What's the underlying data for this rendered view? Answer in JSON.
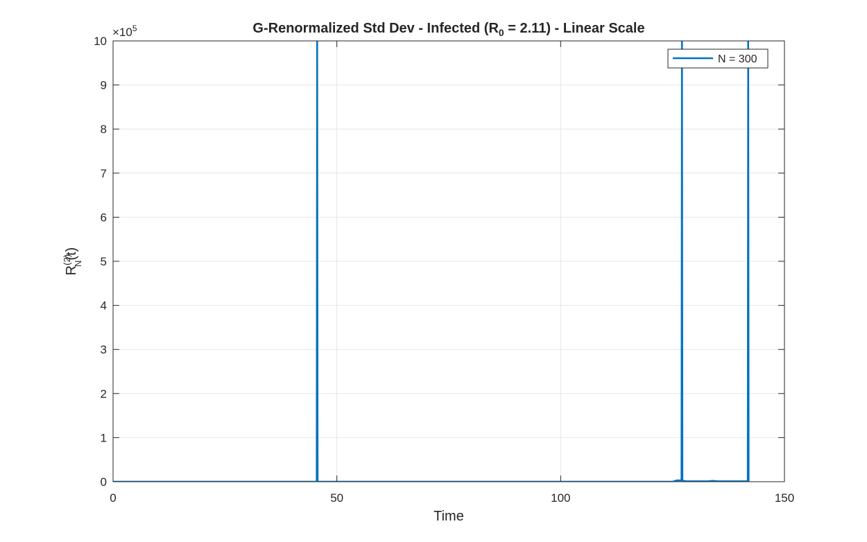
{
  "chart_data": {
    "type": "line",
    "title_parts": {
      "before_sub": "G-Renormalized  Std  Dev  -  Infected  (R",
      "sub": "0",
      "after_sub": "  =  2.11)  -  Linear  Scale"
    },
    "xlabel": "Time",
    "ylabel_parts": {
      "base": "R",
      "sup": "(2)",
      "sub": "N",
      "rest": "(t)"
    },
    "y_exponent_parts": {
      "base": "×10",
      "sup": "5"
    },
    "xlim": [
      0,
      150
    ],
    "ylim": [
      0,
      10
    ],
    "x_ticks": [
      "0",
      "50",
      "100",
      "150"
    ],
    "y_ticks": [
      "0",
      "1",
      "2",
      "3",
      "4",
      "5",
      "6",
      "7",
      "8",
      "9",
      "10"
    ],
    "grid": true,
    "legend_position": "top-right",
    "series": [
      {
        "name": "N = 300",
        "color": "#0072BD",
        "x": [
          0,
          45.5,
          45.6,
          45.7,
          100,
          125,
          126,
          126.8,
          127,
          127.1,
          127.2,
          127.4,
          128,
          133,
          134,
          135,
          135.5,
          141.8,
          141.9,
          142
        ],
        "y": [
          0,
          0,
          10.5,
          0,
          0,
          0,
          0.03,
          0.03,
          0.03,
          10.5,
          0.03,
          0.02,
          0.01,
          0.01,
          0.02,
          0.01,
          0.01,
          0.01,
          10.5,
          0
        ]
      }
    ]
  }
}
